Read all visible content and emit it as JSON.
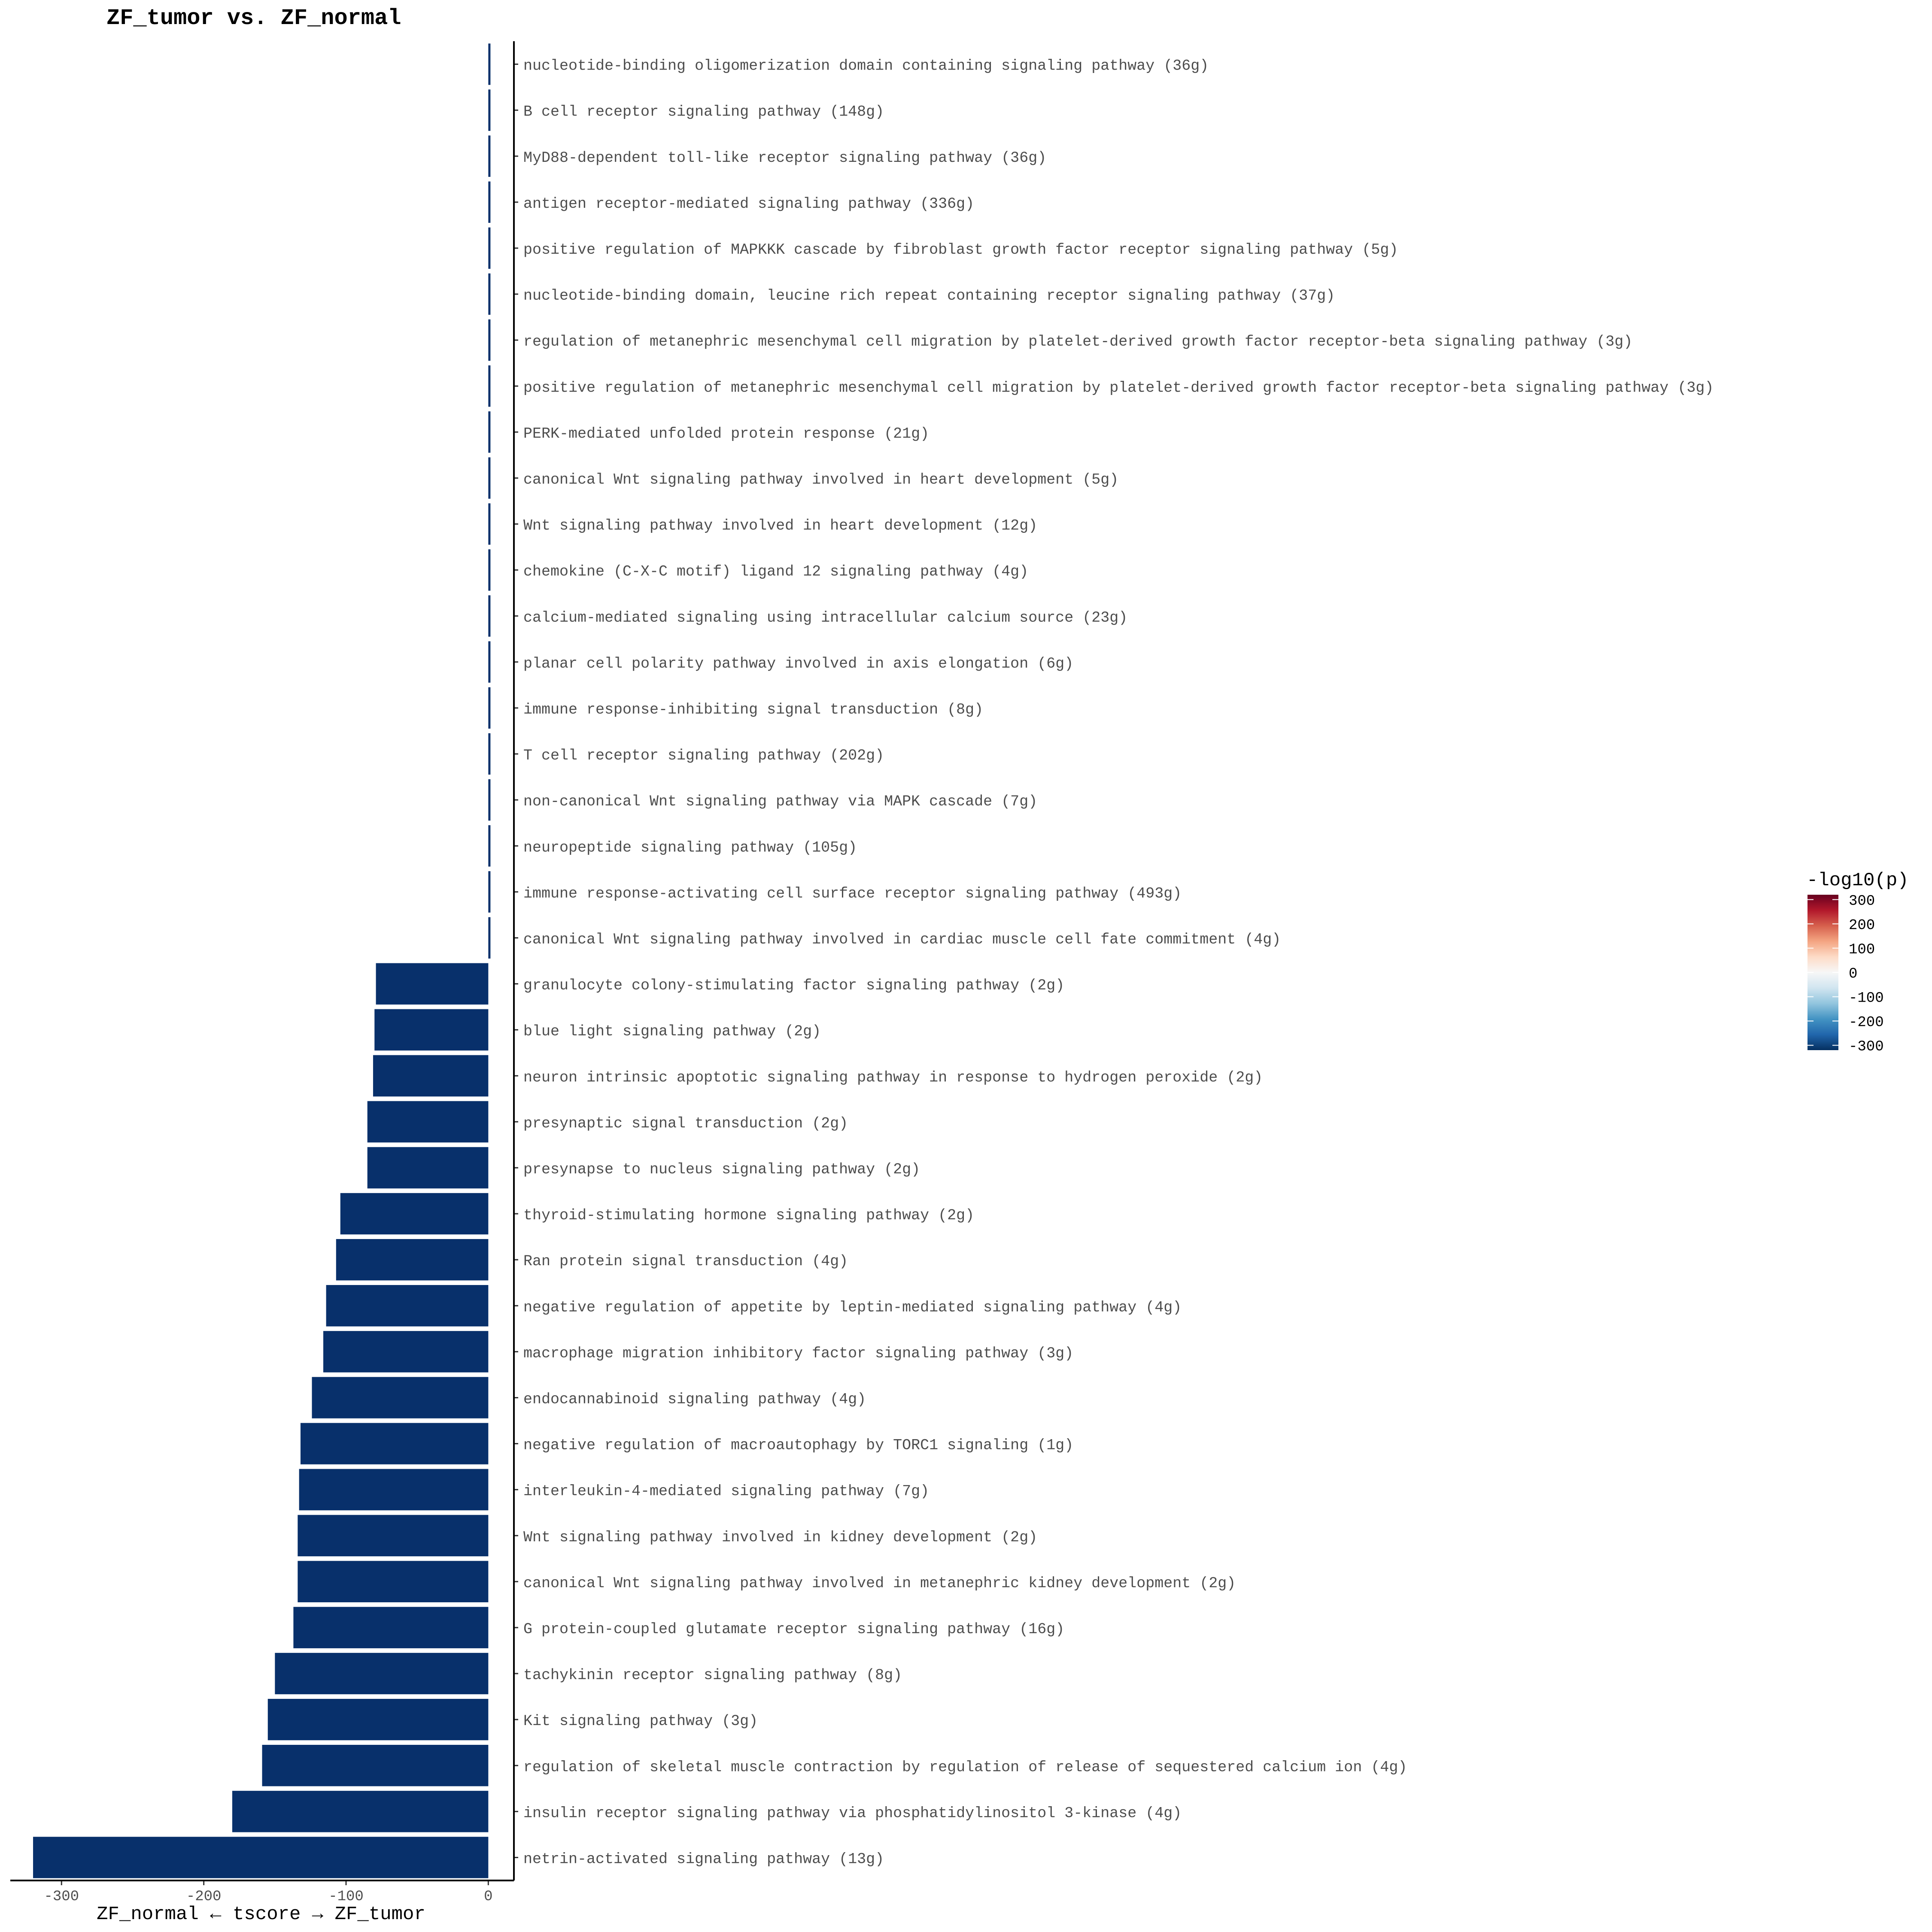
{
  "chart_data": {
    "type": "bar",
    "orientation": "horizontal",
    "title": "ZF_tumor vs. ZF_normal",
    "xlabel": "ZF_normal ← tscore → ZF_tumor",
    "ylabel": "",
    "xlim": [
      -336,
      18
    ],
    "x_ticks": [
      {
        "value": -300,
        "label": "-300"
      },
      {
        "value": -200,
        "label": "-200"
      },
      {
        "value": -100,
        "label": "-100"
      },
      {
        "value": 0,
        "label": "0"
      }
    ],
    "bar_color": "#08306B",
    "grid": false,
    "legend": {
      "title": "-log10(p)",
      "position": "right",
      "colors": [
        "#67001F",
        "#B2182B",
        "#D6604D",
        "#F4A582",
        "#FDDBC7",
        "#F7F7F7",
        "#D1E5F0",
        "#92C5DE",
        "#4393C3",
        "#2166AC",
        "#053061"
      ],
      "ticks": [
        {
          "value": 300,
          "label": "300"
        },
        {
          "value": 200,
          "label": "200"
        },
        {
          "value": 100,
          "label": "100"
        },
        {
          "value": 0,
          "label": "0"
        },
        {
          "value": -100,
          "label": "-100"
        },
        {
          "value": -200,
          "label": "-200"
        },
        {
          "value": -300,
          "label": "-300"
        }
      ],
      "range": [
        -320,
        320
      ]
    },
    "categories": [
      "nucleotide-binding oligomerization domain containing signaling pathway (36g)",
      "B cell receptor signaling pathway (148g)",
      "MyD88-dependent toll-like receptor signaling pathway (36g)",
      "antigen receptor-mediated signaling pathway (336g)",
      "positive regulation of MAPKKK cascade by fibroblast growth factor receptor signaling pathway (5g)",
      "nucleotide-binding domain, leucine rich repeat containing receptor signaling pathway (37g)",
      "regulation of metanephric mesenchymal cell migration by platelet-derived growth factor receptor-beta signaling pathway (3g)",
      "positive regulation of metanephric mesenchymal cell migration by platelet-derived growth factor receptor-beta signaling pathway (3g)",
      "PERK-mediated unfolded protein response (21g)",
      "canonical Wnt signaling pathway involved in heart development (5g)",
      "Wnt signaling pathway involved in heart development (12g)",
      "chemokine (C-X-C motif) ligand 12 signaling pathway (4g)",
      "calcium-mediated signaling using intracellular calcium source (23g)",
      "planar cell polarity pathway involved in axis elongation (6g)",
      "immune response-inhibiting signal transduction (8g)",
      "T cell receptor signaling pathway (202g)",
      "non-canonical Wnt signaling pathway via MAPK cascade (7g)",
      "neuropeptide signaling pathway (105g)",
      "immune response-activating cell surface receptor signaling pathway (493g)",
      "canonical Wnt signaling pathway involved in cardiac muscle cell fate commitment (4g)",
      "granulocyte colony-stimulating factor signaling pathway (2g)",
      "blue light signaling pathway (2g)",
      "neuron intrinsic apoptotic signaling pathway in response to hydrogen peroxide (2g)",
      "presynaptic signal transduction (2g)",
      "presynapse to nucleus signaling pathway (2g)",
      "thyroid-stimulating hormone signaling pathway (2g)",
      "Ran protein signal transduction (4g)",
      "negative regulation of appetite by leptin-mediated signaling pathway (4g)",
      "macrophage migration inhibitory factor signaling pathway (3g)",
      "endocannabinoid signaling pathway (4g)",
      "negative regulation of macroautophagy by TORC1 signaling (1g)",
      "interleukin-4-mediated signaling pathway (7g)",
      "Wnt signaling pathway involved in kidney development (2g)",
      "canonical Wnt signaling pathway involved in metanephric kidney development (2g)",
      "G protein-coupled glutamate receptor signaling pathway (16g)",
      "tachykinin receptor signaling pathway (8g)",
      "Kit signaling pathway (3g)",
      "regulation of skeletal muscle contraction by regulation of release of sequestered calcium ion (4g)",
      "insulin receptor signaling pathway via phosphatidylinositol 3-kinase (4g)",
      "netrin-activated signaling pathway (13g)"
    ],
    "values": [
      0,
      0,
      0,
      0,
      0,
      0,
      0,
      0,
      0,
      0,
      0,
      0,
      0,
      0,
      0,
      0,
      0,
      0,
      0,
      0,
      -79,
      -80,
      -81,
      -85,
      -85,
      -104,
      -107,
      -114,
      -116,
      -124,
      -132,
      -133,
      -134,
      -134,
      -137,
      -150,
      -155,
      -159,
      -180,
      -320
    ]
  }
}
